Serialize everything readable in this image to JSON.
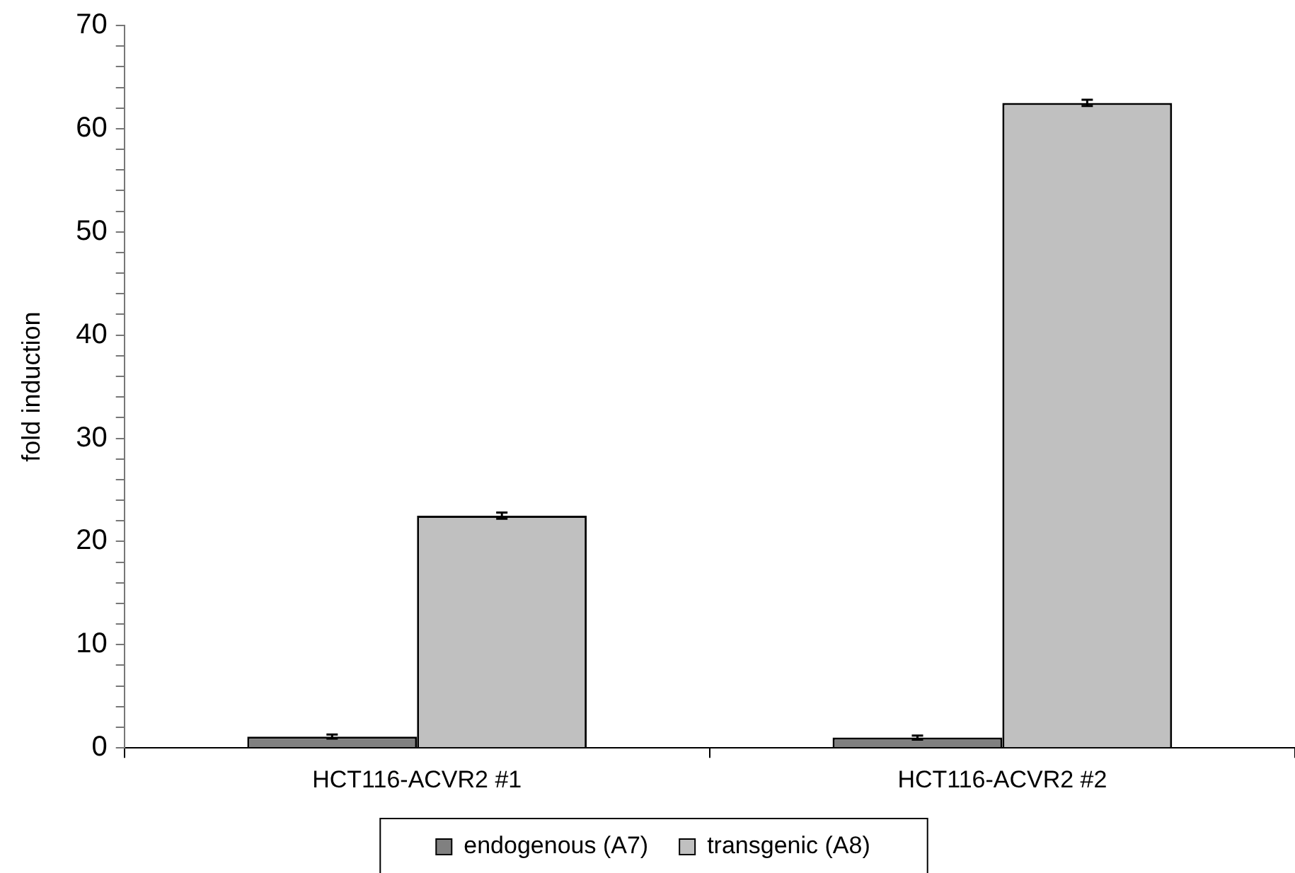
{
  "chart_data": {
    "type": "bar",
    "ylabel": "fold induction",
    "categories": [
      "HCT116-ACVR2 #1",
      "HCT116-ACVR2 #2"
    ],
    "series": [
      {
        "name": "endogenous (A7)",
        "color": "#808080",
        "values": [
          1.1,
          1.0
        ],
        "errors": [
          0.2,
          0.2
        ]
      },
      {
        "name": "transgenic (A8)",
        "color": "#c0c0c0",
        "values": [
          22.5,
          62.5
        ],
        "errors": [
          0.3,
          0.3
        ]
      }
    ],
    "ylim": [
      0,
      70
    ],
    "yticks": [
      0,
      {
        "value": 2,
        "label": null
      },
      {
        "value": 4,
        "label": null
      },
      {
        "value": 6,
        "label": null
      },
      {
        "value": 8,
        "label": null
      },
      10,
      {
        "value": 12,
        "label": null
      },
      {
        "value": 14,
        "label": null
      },
      {
        "value": 16,
        "label": null
      },
      {
        "value": 18,
        "label": null
      },
      20,
      {
        "value": 22,
        "label": null
      },
      {
        "value": 24,
        "label": null
      },
      {
        "value": 26,
        "label": null
      },
      {
        "value": 28,
        "label": null
      },
      30,
      {
        "value": 32,
        "label": null
      },
      {
        "value": 34,
        "label": null
      },
      {
        "value": 36,
        "label": null
      },
      {
        "value": 38,
        "label": null
      },
      40,
      {
        "value": 42,
        "label": null
      },
      {
        "value": 44,
        "label": null
      },
      {
        "value": 46,
        "label": null
      },
      {
        "value": 48,
        "label": null
      },
      50,
      {
        "value": 52,
        "label": null
      },
      {
        "value": 54,
        "label": null
      },
      {
        "value": 56,
        "label": null
      },
      {
        "value": 58,
        "label": null
      },
      60,
      {
        "value": 62,
        "label": null
      },
      {
        "value": 64,
        "label": null
      },
      {
        "value": 66,
        "label": null
      },
      {
        "value": 68,
        "label": null
      },
      70
    ],
    "grid": false,
    "legend": "bottom"
  }
}
